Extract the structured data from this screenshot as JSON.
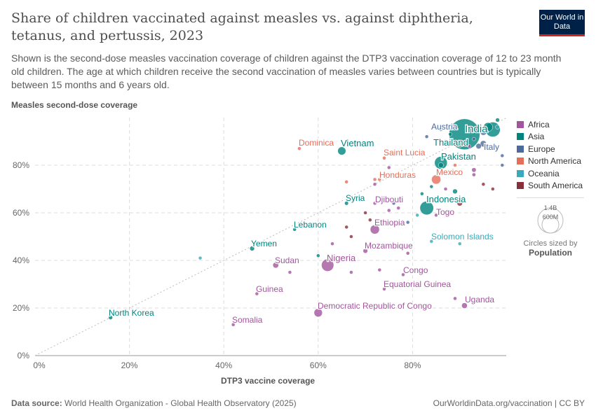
{
  "header": {
    "title": "Share of children vaccinated against measles vs. against diphtheria, tetanus, and pertussis, 2023",
    "subtitle": "Shown is the second-dose measles vaccination coverage of children against the DTP3 vaccination coverage of 12 to 23 month old children. The age at which children receive the second vaccination of measles varies between countries but is typically between 15 months and 6 years old.",
    "logo": "Our World in Data"
  },
  "footer": {
    "source_label": "Data source:",
    "source": "World Health Organization - Global Health Observatory (2025)",
    "link": "OurWorldinData.org/vaccination | CC BY"
  },
  "size_legend": {
    "large": "1.4B",
    "small": "600M",
    "caption": "Circles sized by",
    "variable": "Population"
  },
  "chart_data": {
    "type": "scatter",
    "xlabel": "DTP3 vaccine coverage",
    "ylabel": "Measles second-dose coverage",
    "xlim": [
      0,
      100
    ],
    "ylim": [
      0,
      100
    ],
    "xticks": [
      "0%",
      "20%",
      "40%",
      "60%",
      "80%"
    ],
    "yticks": [
      "0%",
      "20%",
      "40%",
      "60%",
      "80%"
    ],
    "grid": true,
    "legend_position": "right",
    "reference_line": "y = x",
    "regions": [
      {
        "name": "Africa",
        "color": "#a2559c"
      },
      {
        "name": "Asia",
        "color": "#00847e"
      },
      {
        "name": "Europe",
        "color": "#4c6a9c"
      },
      {
        "name": "North America",
        "color": "#e56e5a"
      },
      {
        "name": "Oceania",
        "color": "#38aaba"
      },
      {
        "name": "South America",
        "color": "#883039"
      }
    ],
    "points": [
      {
        "name": "North Korea",
        "region": "Asia",
        "x": 16,
        "y": 16,
        "pop": 26
      },
      {
        "name": "Somalia",
        "region": "Africa",
        "x": 42,
        "y": 13,
        "pop": 18
      },
      {
        "name": "Guinea",
        "region": "Africa",
        "x": 47,
        "y": 26,
        "pop": 14
      },
      {
        "name": "Sudan",
        "region": "Africa",
        "x": 51,
        "y": 38,
        "pop": 50
      },
      {
        "name": "Yemen",
        "region": "Asia",
        "x": 46,
        "y": 45,
        "pop": 34
      },
      {
        "name": "Lebanon",
        "region": "Asia",
        "x": 55,
        "y": 53,
        "pop": 5
      },
      {
        "name": "Nigeria",
        "region": "Africa",
        "x": 62,
        "y": 38,
        "pop": 228
      },
      {
        "name": "Democratic Republic of Congo",
        "region": "Africa",
        "x": 60,
        "y": 18,
        "pop": 105
      },
      {
        "name": "Syria",
        "region": "Asia",
        "x": 66,
        "y": 64,
        "pop": 23
      },
      {
        "name": "Vietnam",
        "region": "Asia",
        "x": 65,
        "y": 86,
        "pop": 99
      },
      {
        "name": "Dominica",
        "region": "North America",
        "x": 56,
        "y": 87,
        "pop": 0.07
      },
      {
        "name": "Ethiopia",
        "region": "Africa",
        "x": 72,
        "y": 53,
        "pop": 126
      },
      {
        "name": "Mozambique",
        "region": "Africa",
        "x": 70,
        "y": 44,
        "pop": 33
      },
      {
        "name": "Djibouti",
        "region": "Africa",
        "x": 72,
        "y": 64,
        "pop": 1.1
      },
      {
        "name": "Congo",
        "region": "Africa",
        "x": 78,
        "y": 34,
        "pop": 6
      },
      {
        "name": "Equatorial Guinea",
        "region": "Africa",
        "x": 74,
        "y": 28,
        "pop": 1.7
      },
      {
        "name": "Uganda",
        "region": "Africa",
        "x": 91,
        "y": 21,
        "pop": 48
      },
      {
        "name": "Solomon Islands",
        "region": "Oceania",
        "x": 84,
        "y": 48,
        "pop": 0.8
      },
      {
        "name": "Saint Lucia",
        "region": "North America",
        "x": 74,
        "y": 83,
        "pop": 0.18
      },
      {
        "name": "Honduras",
        "region": "North America",
        "x": 73,
        "y": 74,
        "pop": 10
      },
      {
        "name": "Mexico",
        "region": "North America",
        "x": 85,
        "y": 74,
        "pop": 129
      },
      {
        "name": "Indonesia",
        "region": "Asia",
        "x": 83,
        "y": 62,
        "pop": 278
      },
      {
        "name": "Togo",
        "region": "Africa",
        "x": 85,
        "y": 59,
        "pop": 9
      },
      {
        "name": "Pakistan",
        "region": "Asia",
        "x": 86,
        "y": 81,
        "pop": 240
      },
      {
        "name": "Thailand",
        "region": "Asia",
        "x": 90,
        "y": 89,
        "pop": 72
      },
      {
        "name": "India",
        "region": "Asia",
        "x": 91,
        "y": 93,
        "pop": 1430
      },
      {
        "name": "Austria",
        "region": "Europe",
        "x": 86,
        "y": 95,
        "pop": 9
      },
      {
        "name": "Italy",
        "region": "Europe",
        "x": 95,
        "y": 89,
        "pop": 59
      },
      {
        "name": "",
        "region": "Oceania",
        "x": 35,
        "y": 41,
        "pop": 1
      },
      {
        "name": "",
        "region": "Africa",
        "x": 54,
        "y": 35,
        "pop": 12
      },
      {
        "name": "",
        "region": "Asia",
        "x": 60,
        "y": 42,
        "pop": 8
      },
      {
        "name": "",
        "region": "Africa",
        "x": 63,
        "y": 47,
        "pop": 8
      },
      {
        "name": "",
        "region": "Africa",
        "x": 67,
        "y": 35,
        "pop": 5
      },
      {
        "name": "",
        "region": "South America",
        "x": 66,
        "y": 54,
        "pop": 8
      },
      {
        "name": "",
        "region": "South America",
        "x": 67,
        "y": 50,
        "pop": 3
      },
      {
        "name": "",
        "region": "South America",
        "x": 70,
        "y": 60,
        "pop": 3
      },
      {
        "name": "",
        "region": "South America",
        "x": 71,
        "y": 57,
        "pop": 3
      },
      {
        "name": "",
        "region": "Africa",
        "x": 73,
        "y": 36,
        "pop": 4
      },
      {
        "name": "",
        "region": "Africa",
        "x": 79,
        "y": 43,
        "pop": 10
      },
      {
        "name": "",
        "region": "Oceania",
        "x": 90,
        "y": 47,
        "pop": 0.5
      },
      {
        "name": "",
        "region": "Africa",
        "x": 89,
        "y": 24,
        "pop": 4
      },
      {
        "name": "",
        "region": "North America",
        "x": 66,
        "y": 73,
        "pop": 3
      },
      {
        "name": "",
        "region": "North America",
        "x": 72,
        "y": 74,
        "pop": 3
      },
      {
        "name": "",
        "region": "Africa",
        "x": 72,
        "y": 72,
        "pop": 3
      },
      {
        "name": "",
        "region": "Africa",
        "x": 75,
        "y": 79,
        "pop": 3
      },
      {
        "name": "",
        "region": "Europe",
        "x": 76,
        "y": 64,
        "pop": 3
      },
      {
        "name": "",
        "region": "Africa",
        "x": 75,
        "y": 61,
        "pop": 4
      },
      {
        "name": "",
        "region": "Europe",
        "x": 79,
        "y": 56,
        "pop": 3
      },
      {
        "name": "",
        "region": "Oceania",
        "x": 81,
        "y": 59,
        "pop": 2
      },
      {
        "name": "",
        "region": "Africa",
        "x": 77,
        "y": 62,
        "pop": 6
      },
      {
        "name": "",
        "region": "Europe",
        "x": 83,
        "y": 92,
        "pop": 10
      },
      {
        "name": "",
        "region": "Asia",
        "x": 86,
        "y": 80,
        "pop": 40
      },
      {
        "name": "",
        "region": "Asia",
        "x": 89,
        "y": 69,
        "pop": 35
      },
      {
        "name": "",
        "region": "South America",
        "x": 90,
        "y": 64,
        "pop": 43
      },
      {
        "name": "",
        "region": "Africa",
        "x": 93,
        "y": 78,
        "pop": 30
      },
      {
        "name": "",
        "region": "Africa",
        "x": 93,
        "y": 76,
        "pop": 20
      },
      {
        "name": "",
        "region": "North America",
        "x": 89,
        "y": 80,
        "pop": 5
      },
      {
        "name": "",
        "region": "Europe",
        "x": 95,
        "y": 94,
        "pop": 68
      },
      {
        "name": "",
        "region": "Asia",
        "x": 97,
        "y": 95,
        "pop": 330
      },
      {
        "name": "",
        "region": "Asia",
        "x": 96,
        "y": 96,
        "pop": 125
      },
      {
        "name": "",
        "region": "Asia",
        "x": 98,
        "y": 99,
        "pop": 25
      },
      {
        "name": "",
        "region": "Europe",
        "x": 94,
        "y": 88,
        "pop": 45
      },
      {
        "name": "",
        "region": "South America",
        "x": 97,
        "y": 70,
        "pop": 3
      },
      {
        "name": "",
        "region": "Europe",
        "x": 99,
        "y": 84,
        "pop": 6
      },
      {
        "name": "",
        "region": "Asia",
        "x": 88,
        "y": 93,
        "pop": 12
      },
      {
        "name": "",
        "region": "Asia",
        "x": 87,
        "y": 90,
        "pop": 20
      },
      {
        "name": "",
        "region": "Europe",
        "x": 93,
        "y": 91,
        "pop": 10
      },
      {
        "name": "",
        "region": "Africa",
        "x": 92,
        "y": 88,
        "pop": 15
      },
      {
        "name": "",
        "region": "South America",
        "x": 95,
        "y": 72,
        "pop": 6
      },
      {
        "name": "",
        "region": "Asia",
        "x": 84,
        "y": 71,
        "pop": 3
      },
      {
        "name": "",
        "region": "Asia",
        "x": 82,
        "y": 68,
        "pop": 2
      },
      {
        "name": "",
        "region": "Africa",
        "x": 87,
        "y": 70,
        "pop": 8
      },
      {
        "name": "",
        "region": "Europe",
        "x": 99,
        "y": 80,
        "pop": 4
      },
      {
        "name": "",
        "region": "Oceania",
        "x": 98,
        "y": 96,
        "pop": 26
      }
    ]
  }
}
